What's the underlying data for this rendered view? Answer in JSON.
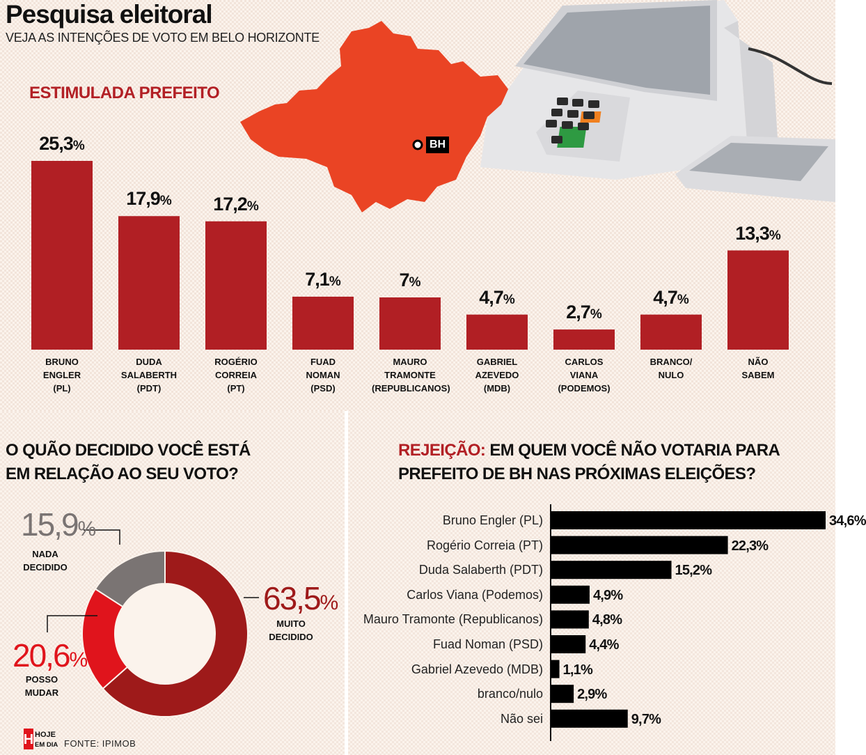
{
  "header": {
    "title": "Pesquisa eleitoral",
    "subtitle": "VEJA AS INTENÇÕES DE VOTO EM BELO HORIZONTE"
  },
  "map": {
    "city_label": "BH"
  },
  "colors": {
    "red_bar": "#b11f24",
    "dark_red": "#9e1a1a",
    "bright_red": "#e0141c",
    "gray": "#7a7473",
    "black_bar": "#000000",
    "accent_text": "#b22025"
  },
  "chart_data": [
    {
      "type": "bar",
      "title": "ESTIMULADA PREFEITO",
      "categories": [
        [
          "BRUNO",
          "ENGLER",
          "(PL)"
        ],
        [
          "DUDA",
          "SALABERTH",
          "(PDT)"
        ],
        [
          "ROGÉRIO",
          "CORREIA",
          "(PT)"
        ],
        [
          "FUAD",
          "NOMAN",
          "(PSD)"
        ],
        [
          "MAURO",
          "TRAMONTE",
          "(REPUBLICANOS)"
        ],
        [
          "GABRIEL",
          "AZEVEDO",
          "(MDB)"
        ],
        [
          "CARLOS",
          "VIANA",
          "(PODEMOS)"
        ],
        [
          "BRANCO/",
          "NULO"
        ],
        [
          "NÃO",
          "SABEM"
        ]
      ],
      "values": [
        25.3,
        17.9,
        17.2,
        7.1,
        7,
        4.7,
        2.7,
        4.7,
        13.3
      ],
      "value_labels": [
        "25,3",
        "17,9",
        "17,2",
        "7,1",
        "7",
        "4,7",
        "2,7",
        "4,7",
        "13,3"
      ],
      "unit": "%"
    },
    {
      "type": "pie",
      "title": "O QUÃO DECIDIDO VOCÊ ESTÁ EM RELAÇÃO AO SEU VOTO?",
      "title_lines": [
        "O QUÃO DECIDIDO VOCÊ ESTÁ",
        "EM RELAÇÃO AO SEU VOTO?"
      ],
      "slices": [
        {
          "label": [
            "MUITO",
            "DECIDIDO"
          ],
          "value": 63.5,
          "value_label": "63,5",
          "color": "#9e1a1a"
        },
        {
          "label": [
            "POSSO",
            "MUDAR"
          ],
          "value": 20.6,
          "value_label": "20,6",
          "color": "#e0141c"
        },
        {
          "label": [
            "NADA",
            "DECIDIDO"
          ],
          "value": 15.9,
          "value_label": "15,9",
          "color": "#7a7473"
        }
      ],
      "unit": "%"
    },
    {
      "type": "bar",
      "orientation": "horizontal",
      "title_accent": "REJEIÇÃO:",
      "title_rest_line1": " EM QUEM VOCÊ NÃO VOTARIA PARA",
      "title_line2": "PREFEITO DE BH NAS PRÓXIMAS ELEIÇÕES?",
      "categories": [
        "Bruno Engler (PL)",
        "Rogério Correia (PT)",
        "Duda Salaberth (PDT)",
        "Carlos Viana (Podemos)",
        "Mauro Tramonte (Republicanos)",
        "Fuad Noman (PSD)",
        "Gabriel Azevedo (MDB)",
        "branco/nulo",
        "Não sei"
      ],
      "values": [
        34.6,
        22.3,
        15.2,
        4.9,
        4.8,
        4.4,
        1.1,
        2.9,
        9.7
      ],
      "value_labels": [
        "34,6%",
        "22,3%",
        "15,2%",
        "4,9%",
        "4,8%",
        "4,4%",
        "1,1%",
        "2,9%",
        "9,7%"
      ]
    }
  ],
  "footer": {
    "logo_top": "HOJE",
    "logo_bottom": "EM DIA",
    "logo_letter": "H",
    "source": "FONTE: IPIMOB"
  }
}
